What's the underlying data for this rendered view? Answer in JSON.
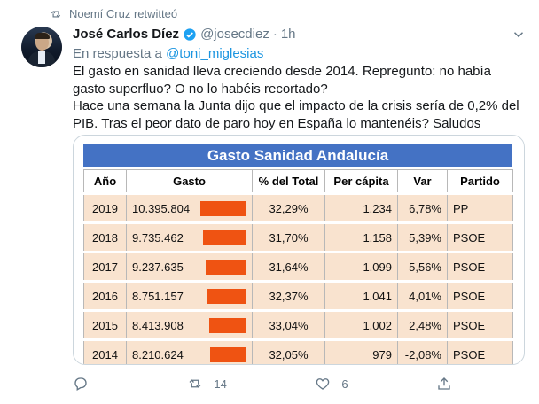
{
  "retweet": {
    "text": "Noemí Cruz retwitteó",
    "icon": "retweet-icon"
  },
  "author": {
    "name": "José Carlos Díez",
    "handle": "@josecdiez",
    "separator": "·",
    "time": "1h",
    "verified": true
  },
  "reply": {
    "prefix": "En respuesta a",
    "mention": "@toni_miglesias"
  },
  "tweet": {
    "line1": "El gasto en sanidad lleva creciendo desde 2014. Repregunto: no había gasto superfluo? O no lo habéis recortado?",
    "line2": "Hace una semana la Junta dijo que el impacto de la crisis sería de 0,2% del PIB. Tras el peor dato de paro hoy en España lo mantenéis? Saludos"
  },
  "table": {
    "title": "Gasto Sanidad Andalucía",
    "headers": [
      "Año",
      "Gasto",
      "% del Total",
      "Per cápita",
      "Var",
      "Partido"
    ],
    "rows": [
      {
        "year": "2019",
        "gasto": "10.395.804",
        "gasto_value": 10395804,
        "pct": "32,29%",
        "per_capita": "1.234",
        "var": "6,78%",
        "var_sign": "pos",
        "partido": "PP"
      },
      {
        "year": "2018",
        "gasto": "9.735.462",
        "gasto_value": 9735462,
        "pct": "31,70%",
        "per_capita": "1.158",
        "var": "5,39%",
        "var_sign": "pos",
        "partido": "PSOE"
      },
      {
        "year": "2017",
        "gasto": "9.237.635",
        "gasto_value": 9237635,
        "pct": "31,64%",
        "per_capita": "1.099",
        "var": "5,56%",
        "var_sign": "pos",
        "partido": "PSOE"
      },
      {
        "year": "2016",
        "gasto": "8.751.157",
        "gasto_value": 8751157,
        "pct": "32,37%",
        "per_capita": "1.041",
        "var": "4,01%",
        "var_sign": "pos",
        "partido": "PSOE"
      },
      {
        "year": "2015",
        "gasto": "8.413.908",
        "gasto_value": 8413908,
        "pct": "33,04%",
        "per_capita": "1.002",
        "var": "2,48%",
        "var_sign": "pos",
        "partido": "PSOE"
      },
      {
        "year": "2014",
        "gasto": "8.210.624",
        "gasto_value": 8210624,
        "pct": "32,05%",
        "per_capita": "979",
        "var": "-2,08%",
        "var_sign": "neg",
        "partido": "PSOE"
      }
    ]
  },
  "actions": {
    "reply": {
      "icon": "reply-icon",
      "count": ""
    },
    "retweet": {
      "icon": "retweet-icon",
      "count": "14"
    },
    "like": {
      "icon": "heart-icon",
      "count": "6"
    },
    "share": {
      "icon": "share-icon",
      "count": ""
    }
  },
  "colors": {
    "link": "#1b95e0",
    "muted": "#657786",
    "table_header": "#4472c4",
    "row_bg": "#f9e3cf",
    "bar": "#ef5312",
    "var_positive": "#70ad47",
    "var_negative": "#e05a1b"
  }
}
